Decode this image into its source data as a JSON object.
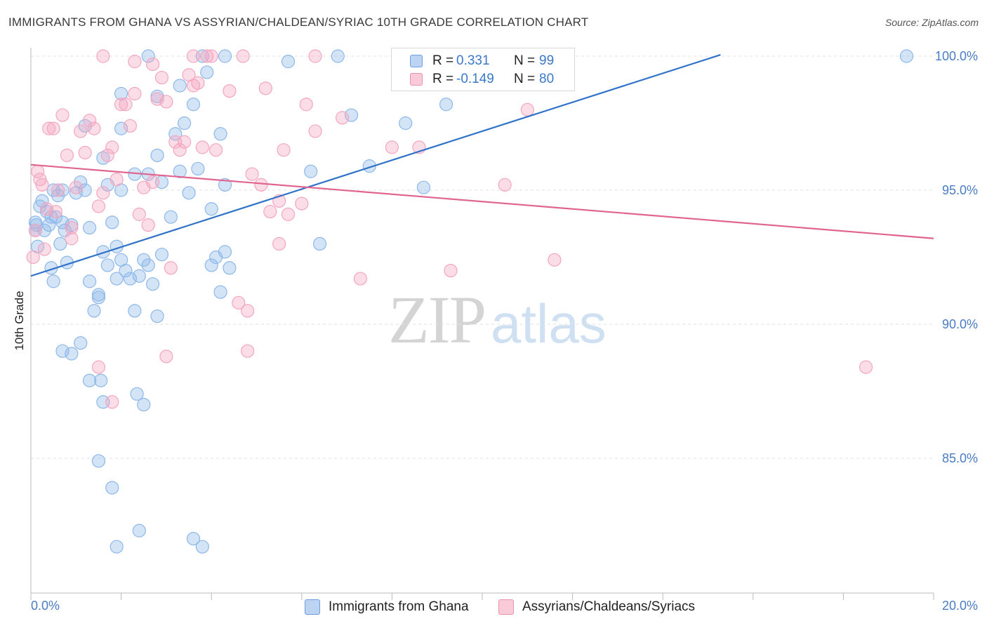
{
  "title": "IMMIGRANTS FROM GHANA VS ASSYRIAN/CHALDEAN/SYRIAC 10TH GRADE CORRELATION CHART",
  "source": "Source: ZipAtlas.com",
  "watermark": {
    "zip": "ZIP",
    "atlas": "atlas"
  },
  "legend_top": {
    "rows": [
      {
        "r_label": "R =",
        "r_value": "0.331",
        "n_label": "N =",
        "n_value": "99"
      },
      {
        "r_label": "R =",
        "r_value": "-0.149",
        "n_label": "N =",
        "n_value": "80"
      }
    ]
  },
  "chart_data": {
    "type": "scatter",
    "title": "IMMIGRANTS FROM GHANA VS ASSYRIAN/CHALDEAN/SYRIAC 10TH GRADE CORRELATION CHART",
    "xlabel": "",
    "ylabel": "10th Grade",
    "xlim": [
      0,
      20
    ],
    "ylim": [
      80.5,
      100.6
    ],
    "x_tick_labels": [
      {
        "value": 0,
        "label": "0.0%"
      },
      {
        "value": 20,
        "label": "20.0%"
      }
    ],
    "y_tick_labels": [
      {
        "value": 100,
        "label": "100.0%"
      },
      {
        "value": 95,
        "label": "95.0%"
      },
      {
        "value": 90,
        "label": "90.0%"
      },
      {
        "value": 85,
        "label": "85.0%"
      }
    ],
    "grid": true,
    "legend_position": "bottom",
    "series": [
      {
        "name": "Immigrants from Ghana",
        "color": "#8db8ea",
        "line_color": "#2f72c8",
        "trend": {
          "x": [
            0,
            20
          ],
          "y": [
            91.8,
            102.6
          ]
        },
        "points": [
          [
            0.1,
            93.8
          ],
          [
            0.1,
            93.5
          ],
          [
            0.12,
            93.7
          ],
          [
            0.15,
            92.9
          ],
          [
            0.2,
            94.4
          ],
          [
            0.25,
            94.6
          ],
          [
            0.3,
            93.5
          ],
          [
            0.35,
            94.2
          ],
          [
            0.4,
            93.7
          ],
          [
            0.45,
            94.0
          ],
          [
            0.5,
            95.0
          ],
          [
            0.55,
            94.0
          ],
          [
            0.6,
            94.8
          ],
          [
            0.65,
            93.0
          ],
          [
            0.7,
            93.8
          ],
          [
            0.7,
            95.0
          ],
          [
            0.75,
            93.5
          ],
          [
            0.8,
            92.3
          ],
          [
            0.9,
            93.7
          ],
          [
            1.0,
            94.9
          ],
          [
            1.1,
            95.3
          ],
          [
            1.2,
            95.0
          ],
          [
            1.3,
            93.6
          ],
          [
            0.45,
            92.1
          ],
          [
            0.7,
            89.0
          ],
          [
            0.5,
            91.6
          ],
          [
            0.9,
            88.9
          ],
          [
            1.1,
            89.3
          ],
          [
            1.3,
            91.6
          ],
          [
            1.4,
            90.5
          ],
          [
            1.5,
            91.0
          ],
          [
            1.5,
            91.1
          ],
          [
            1.6,
            92.7
          ],
          [
            1.7,
            92.2
          ],
          [
            1.8,
            93.8
          ],
          [
            1.9,
            92.9
          ],
          [
            1.9,
            91.7
          ],
          [
            2.0,
            92.4
          ],
          [
            2.1,
            92.0
          ],
          [
            2.2,
            91.7
          ],
          [
            2.3,
            90.5
          ],
          [
            2.4,
            91.8
          ],
          [
            2.5,
            92.4
          ],
          [
            2.6,
            92.2
          ],
          [
            2.7,
            91.5
          ],
          [
            2.8,
            90.3
          ],
          [
            2.9,
            92.6
          ],
          [
            1.3,
            87.9
          ],
          [
            1.6,
            87.1
          ],
          [
            1.55,
            87.9
          ],
          [
            2.35,
            87.4
          ],
          [
            2.5,
            87.0
          ],
          [
            1.5,
            84.9
          ],
          [
            1.8,
            83.9
          ],
          [
            2.4,
            82.3
          ],
          [
            1.9,
            81.7
          ],
          [
            3.6,
            82.0
          ],
          [
            3.8,
            81.7
          ],
          [
            1.7,
            95.2
          ],
          [
            2.0,
            95.0
          ],
          [
            2.3,
            95.6
          ],
          [
            2.6,
            95.6
          ],
          [
            2.9,
            95.3
          ],
          [
            3.1,
            94.0
          ],
          [
            3.3,
            95.7
          ],
          [
            3.5,
            94.9
          ],
          [
            3.7,
            95.8
          ],
          [
            1.6,
            96.2
          ],
          [
            2.0,
            97.3
          ],
          [
            2.8,
            96.3
          ],
          [
            3.2,
            97.1
          ],
          [
            3.4,
            97.5
          ],
          [
            3.6,
            98.2
          ],
          [
            3.9,
            99.4
          ],
          [
            4.2,
            97.1
          ],
          [
            4.0,
            94.3
          ],
          [
            4.3,
            92.7
          ],
          [
            4.1,
            92.5
          ],
          [
            4.4,
            92.1
          ],
          [
            4.2,
            91.2
          ],
          [
            4.0,
            92.2
          ],
          [
            4.3,
            95.2
          ],
          [
            1.2,
            97.4
          ],
          [
            2.0,
            98.6
          ],
          [
            2.8,
            98.5
          ],
          [
            3.3,
            98.9
          ],
          [
            3.8,
            100.0
          ],
          [
            4.3,
            100.0
          ],
          [
            2.6,
            100.0
          ],
          [
            5.7,
            99.8
          ],
          [
            6.8,
            100.0
          ],
          [
            6.2,
            95.7
          ],
          [
            7.1,
            97.8
          ],
          [
            7.5,
            95.9
          ],
          [
            8.3,
            97.5
          ],
          [
            8.7,
            95.1
          ],
          [
            9.2,
            98.2
          ],
          [
            6.4,
            93.0
          ],
          [
            19.4,
            100.0
          ]
        ]
      },
      {
        "name": "Assyrians/Chaldeans/Syriacs",
        "color": "#f4a6bf",
        "line_color": "#e0648f",
        "trend": {
          "x": [
            0,
            20
          ],
          "y": [
            95.95,
            93.2
          ]
        },
        "points": [
          [
            0.05,
            92.5
          ],
          [
            0.1,
            93.5
          ],
          [
            0.15,
            95.7
          ],
          [
            0.2,
            95.4
          ],
          [
            0.25,
            95.2
          ],
          [
            0.3,
            92.8
          ],
          [
            0.35,
            94.3
          ],
          [
            0.4,
            97.3
          ],
          [
            0.5,
            97.3
          ],
          [
            0.55,
            94.2
          ],
          [
            0.6,
            95.0
          ],
          [
            0.7,
            97.8
          ],
          [
            0.8,
            96.3
          ],
          [
            0.9,
            93.6
          ],
          [
            1.0,
            95.1
          ],
          [
            1.1,
            97.2
          ],
          [
            1.2,
            96.4
          ],
          [
            1.3,
            97.6
          ],
          [
            1.4,
            97.3
          ],
          [
            1.5,
            94.4
          ],
          [
            1.6,
            94.9
          ],
          [
            1.7,
            96.3
          ],
          [
            1.8,
            96.6
          ],
          [
            1.9,
            95.4
          ],
          [
            2.0,
            98.2
          ],
          [
            2.1,
            98.2
          ],
          [
            2.2,
            97.4
          ],
          [
            2.3,
            98.6
          ],
          [
            2.4,
            94.1
          ],
          [
            2.5,
            95.1
          ],
          [
            2.6,
            93.7
          ],
          [
            2.7,
            95.3
          ],
          [
            2.8,
            98.4
          ],
          [
            2.9,
            99.2
          ],
          [
            3.0,
            98.3
          ],
          [
            3.1,
            92.1
          ],
          [
            3.2,
            96.8
          ],
          [
            3.3,
            96.5
          ],
          [
            3.4,
            96.8
          ],
          [
            3.5,
            99.3
          ],
          [
            3.6,
            98.9
          ],
          [
            3.7,
            99.0
          ],
          [
            3.8,
            96.6
          ],
          [
            3.9,
            100.0
          ],
          [
            4.0,
            100.0
          ],
          [
            4.4,
            98.7
          ],
          [
            1.6,
            100.0
          ],
          [
            2.7,
            99.7
          ],
          [
            3.6,
            100.0
          ],
          [
            4.7,
            100.0
          ],
          [
            4.9,
            95.6
          ],
          [
            5.1,
            95.2
          ],
          [
            5.3,
            94.2
          ],
          [
            5.5,
            94.6
          ],
          [
            5.6,
            96.5
          ],
          [
            5.7,
            94.1
          ],
          [
            6.0,
            94.5
          ],
          [
            6.1,
            98.2
          ],
          [
            6.3,
            97.2
          ],
          [
            5.2,
            98.8
          ],
          [
            5.5,
            93.0
          ],
          [
            4.8,
            90.5
          ],
          [
            4.6,
            90.8
          ],
          [
            4.8,
            89.0
          ],
          [
            6.9,
            97.7
          ],
          [
            7.3,
            91.7
          ],
          [
            8.0,
            96.6
          ],
          [
            8.6,
            96.6
          ],
          [
            9.3,
            92.0
          ],
          [
            10.5,
            95.2
          ],
          [
            11.0,
            98.0
          ],
          [
            11.6,
            92.4
          ],
          [
            18.5,
            88.4
          ],
          [
            3.0,
            88.8
          ],
          [
            1.5,
            88.4
          ],
          [
            1.8,
            87.1
          ],
          [
            0.9,
            93.2
          ],
          [
            2.3,
            99.8
          ],
          [
            4.1,
            96.5
          ],
          [
            6.3,
            100.0
          ]
        ]
      }
    ]
  }
}
